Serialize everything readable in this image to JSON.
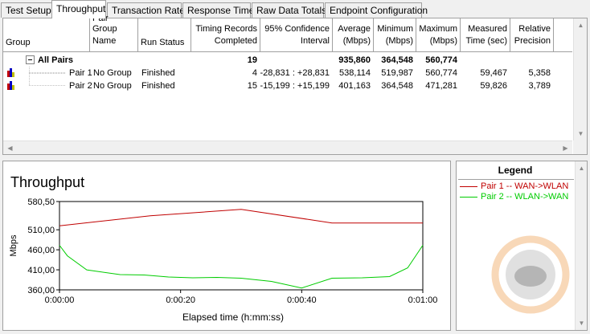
{
  "tabs": [
    {
      "label": "Test Setup",
      "active": false
    },
    {
      "label": "Throughput",
      "active": true
    },
    {
      "label": "Transaction Rate",
      "active": false
    },
    {
      "label": "Response Time",
      "active": false
    },
    {
      "label": "Raw Data Totals",
      "active": false
    },
    {
      "label": "Endpoint Configuration",
      "active": false
    }
  ],
  "table": {
    "headers": {
      "group": "Group",
      "pair_group_name_1": "Pair Group",
      "pair_group_name_2": "Name",
      "run_status": "Run Status",
      "timing_1": "Timing Records",
      "timing_2": "Completed",
      "confidence_1": "95% Confidence",
      "confidence_2": "Interval",
      "average_1": "Average",
      "average_2": "(Mbps)",
      "minimum_1": "Minimum",
      "minimum_2": "(Mbps)",
      "maximum_1": "Maximum",
      "maximum_2": "(Mbps)",
      "measured_1": "Measured",
      "measured_2": "Time (sec)",
      "relative_1": "Relative",
      "relative_2": "Precision"
    },
    "all_pairs": {
      "label": "All Pairs",
      "timing": "19",
      "average": "935,860",
      "minimum": "364,548",
      "maximum": "560,774"
    },
    "rows": [
      {
        "name": "Pair 1",
        "group": "No Group",
        "status": "Finished",
        "timing": "4",
        "confidence": "-28,831 : +28,831",
        "average": "538,114",
        "minimum": "519,987",
        "maximum": "560,774",
        "measured": "59,467",
        "precision": "5,358"
      },
      {
        "name": "Pair 2",
        "group": "No Group",
        "status": "Finished",
        "timing": "15",
        "confidence": "-15,199 : +15,199",
        "average": "401,163",
        "minimum": "364,548",
        "maximum": "471,281",
        "measured": "59,826",
        "precision": "3,789"
      }
    ]
  },
  "chart": {
    "title": "Throughput",
    "ylabel": "Mbps",
    "xlabel": "Elapsed time (h:mm:ss)"
  },
  "legend": {
    "title": "Legend",
    "items": [
      {
        "label": "Pair 1 -- WAN->WLAN",
        "color": "#c00000"
      },
      {
        "label": "Pair 2 -- WLAN->WAN",
        "color": "#00cc00"
      }
    ]
  },
  "chart_data": {
    "type": "line",
    "title": "Throughput",
    "xlabel": "Elapsed time (h:mm:ss)",
    "ylabel": "Mbps",
    "ylim": [
      360,
      580.5
    ],
    "yticks": [
      "580,50",
      "510,00",
      "460,00",
      "410,00",
      "360,00"
    ],
    "ytick_values": [
      580.5,
      510,
      460,
      410,
      360
    ],
    "xticks": [
      "0:00:00",
      "0:00:20",
      "0:00:40",
      "0:01:00"
    ],
    "xtick_values": [
      0,
      20,
      40,
      60
    ],
    "xlim": [
      0,
      60
    ],
    "grid": false,
    "series": [
      {
        "name": "Pair 1 -- WAN->WLAN",
        "color": "#c00000",
        "x": [
          0,
          15,
          30,
          45,
          60
        ],
        "y": [
          519.99,
          545,
          560.77,
          527,
          527
        ]
      },
      {
        "name": "Pair 2 -- WLAN->WAN",
        "color": "#00cc00",
        "x": [
          0,
          1.3,
          4.5,
          10,
          14,
          18,
          22,
          26,
          30,
          35,
          40,
          45,
          50,
          54.5,
          57.5,
          60
        ],
        "y": [
          471.28,
          445,
          410,
          398,
          397,
          392,
          390,
          391,
          389,
          381,
          364.55,
          389,
          390,
          393,
          415,
          471.28
        ]
      }
    ]
  }
}
